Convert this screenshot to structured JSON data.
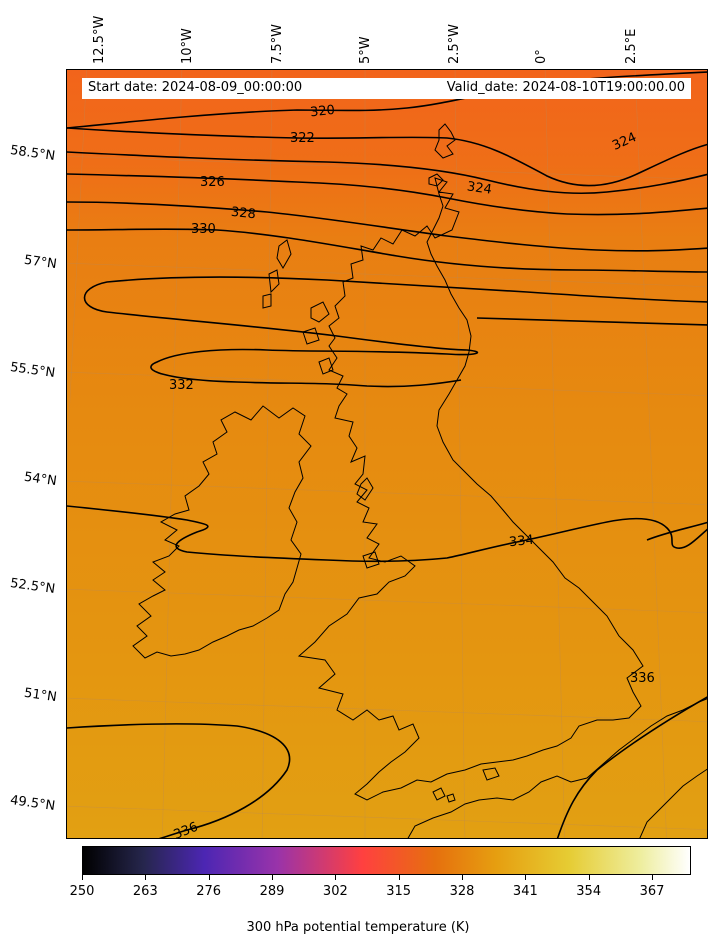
{
  "map": {
    "header": {
      "start_date": "Start date: 2024-08-09_00:00:00",
      "valid_date": "Valid_date: 2024-08-10T19:00:00.00"
    },
    "longitude_labels": [
      "12.5°W",
      "10°W",
      "7.5°W",
      "5°W",
      "2.5°W",
      "0°",
      "2.5°E"
    ],
    "latitude_labels": [
      "58.5°N",
      "57°N",
      "55.5°N",
      "54°N",
      "52.5°N",
      "51°N",
      "49.5°N"
    ],
    "contour_labels": [
      "320",
      "322",
      "324",
      "324",
      "326",
      "328",
      "330",
      "332",
      "334",
      "336",
      "336"
    ],
    "colors": {
      "north_field": "#f06a1a",
      "mid_field": "#e68a10",
      "south_field": "#e39d10",
      "contour": "#000000"
    }
  },
  "colorbar": {
    "label": "300 hPa potential temperature (K)",
    "ticks": [
      "250",
      "263",
      "276",
      "289",
      "302",
      "315",
      "328",
      "341",
      "354",
      "367"
    ],
    "range": [
      250,
      375
    ],
    "colormap": "CMRmap"
  }
}
